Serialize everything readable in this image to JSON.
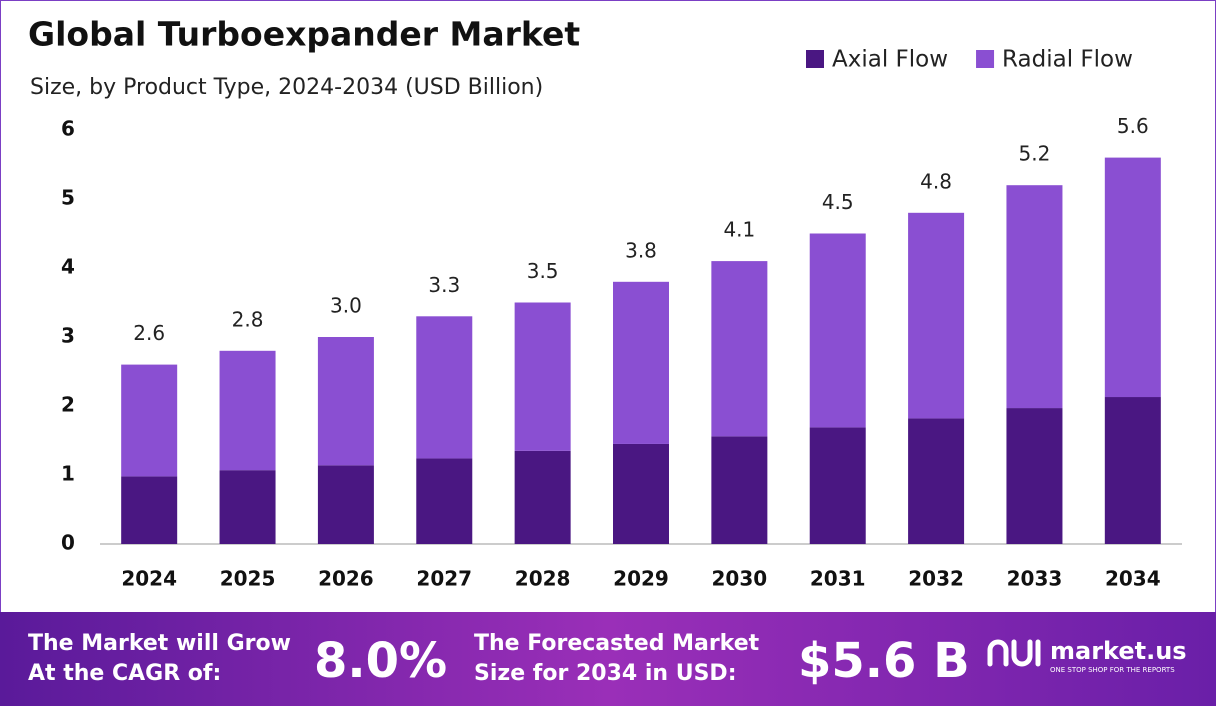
{
  "chart_data": {
    "type": "stacked-bar",
    "title": "Global Turboexpander Market",
    "subtitle": "Size, by Product Type, 2024-2034 (USD Billion)",
    "categories": [
      "2024",
      "2025",
      "2026",
      "2027",
      "2028",
      "2029",
      "2030",
      "2031",
      "2032",
      "2033",
      "2034"
    ],
    "series": [
      {
        "name": "Axial Flow",
        "color": "#4a1782",
        "values": [
          0.98,
          1.07,
          1.14,
          1.24,
          1.35,
          1.45,
          1.56,
          1.69,
          1.82,
          1.97,
          2.13
        ]
      },
      {
        "name": "Radial Flow",
        "color": "#8a4fd2",
        "values": [
          1.62,
          1.73,
          1.86,
          2.06,
          2.15,
          2.35,
          2.54,
          2.81,
          2.98,
          3.23,
          3.47
        ]
      }
    ],
    "totals": [
      2.6,
      2.8,
      3.0,
      3.3,
      3.5,
      3.8,
      4.1,
      4.5,
      4.8,
      5.2,
      5.6
    ],
    "total_labels": [
      "2.6",
      "2.8",
      "3.0",
      "3.3",
      "3.5",
      "3.8",
      "4.1",
      "4.5",
      "4.8",
      "5.2",
      "5.6"
    ],
    "ylim": [
      0,
      6
    ],
    "yticks": [
      0,
      1,
      2,
      3,
      4,
      5,
      6
    ],
    "grid": false,
    "legend": "top-right"
  },
  "footer": {
    "cagr_text": [
      "The Market will Grow",
      "At the CAGR of:"
    ],
    "cagr_value": "8.0%",
    "forecast_text": [
      "The Forecasted Market",
      "Size for 2034 in USD:"
    ],
    "forecast_value": "$5.6 B",
    "brand": "market.us",
    "tagline": "ONE STOP SHOP FOR THE REPORTS"
  }
}
